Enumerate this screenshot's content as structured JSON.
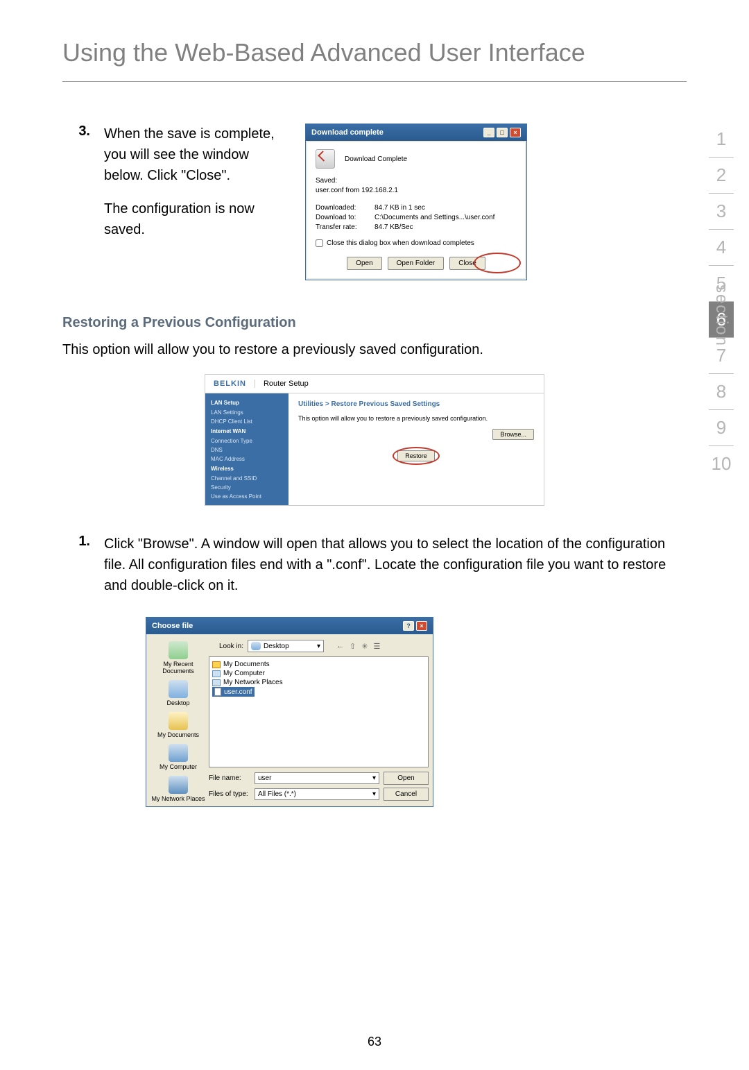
{
  "page": {
    "title": "Using the Web-Based Advanced User Interface",
    "number": "63"
  },
  "section_nav": {
    "items": [
      "1",
      "2",
      "3",
      "4",
      "5",
      "6",
      "7",
      "8",
      "9",
      "10"
    ],
    "active_index": 5,
    "label": "section"
  },
  "step3": {
    "num": "3.",
    "p1": "When the save is complete, you will see the window below. Click \"Close\".",
    "p2": "The configuration is now saved."
  },
  "download_dialog": {
    "title": "Download complete",
    "heading": "Download Complete",
    "saved_label": "Saved:",
    "saved_value": "user.conf from 192.168.2.1",
    "rows": {
      "downloaded_label": "Downloaded:",
      "downloaded_value": "84.7 KB in 1 sec",
      "downloadto_label": "Download to:",
      "downloadto_value": "C:\\Documents and Settings...\\user.conf",
      "rate_label": "Transfer rate:",
      "rate_value": "84.7 KB/Sec"
    },
    "checkbox_label": "Close this dialog box when download completes",
    "buttons": {
      "open": "Open",
      "open_folder": "Open Folder",
      "close": "Close"
    },
    "winbtns": {
      "min": "_",
      "max": "□",
      "close": "×"
    }
  },
  "restore": {
    "heading": "Restoring a Previous Configuration",
    "intro": "This option will allow you to restore a previously saved configuration."
  },
  "router": {
    "brand": "BELKIN",
    "title": "Router Setup",
    "sidebar": {
      "lan_setup": "LAN Setup",
      "lan_settings": "LAN Settings",
      "dhcp": "DHCP Client List",
      "internet_wan": "Internet WAN",
      "conn_type": "Connection Type",
      "dns": "DNS",
      "mac": "MAC Address",
      "wireless": "Wireless",
      "channel": "Channel and SSID",
      "security": "Security",
      "use_ap": "Use as Access Point"
    },
    "breadcrumb": "Utilities > Restore Previous Saved Settings",
    "desc": "This option will allow you to restore a previously saved configuration.",
    "browse_btn": "Browse...",
    "restore_btn": "Restore"
  },
  "step1": {
    "num": "1.",
    "text": "Click \"Browse\". A window will open that allows you to select the location of the configuration file. All configuration files end with a \".conf\". Locate the configuration file you want to restore and double-click on it."
  },
  "file_dialog": {
    "title": "Choose file",
    "help": "?",
    "close": "×",
    "lookin_label": "Look in:",
    "lookin_value": "Desktop",
    "toolbar_glyphs": {
      "back": "←",
      "up": "⇧",
      "new": "✳",
      "view": "☰"
    },
    "places": {
      "recent": "My Recent Documents",
      "desktop": "Desktop",
      "docs": "My Documents",
      "computer": "My Computer",
      "network": "My Network Places"
    },
    "items": {
      "my_documents": "My Documents",
      "my_computer": "My Computer",
      "my_network_places": "My Network Places",
      "user_conf": "user.conf"
    },
    "filename_label": "File name:",
    "filename_value": "user",
    "filetype_label": "Files of type:",
    "filetype_value": "All Files (*.*)",
    "open_btn": "Open",
    "cancel_btn": "Cancel",
    "dropdown_glyph": "▾"
  }
}
